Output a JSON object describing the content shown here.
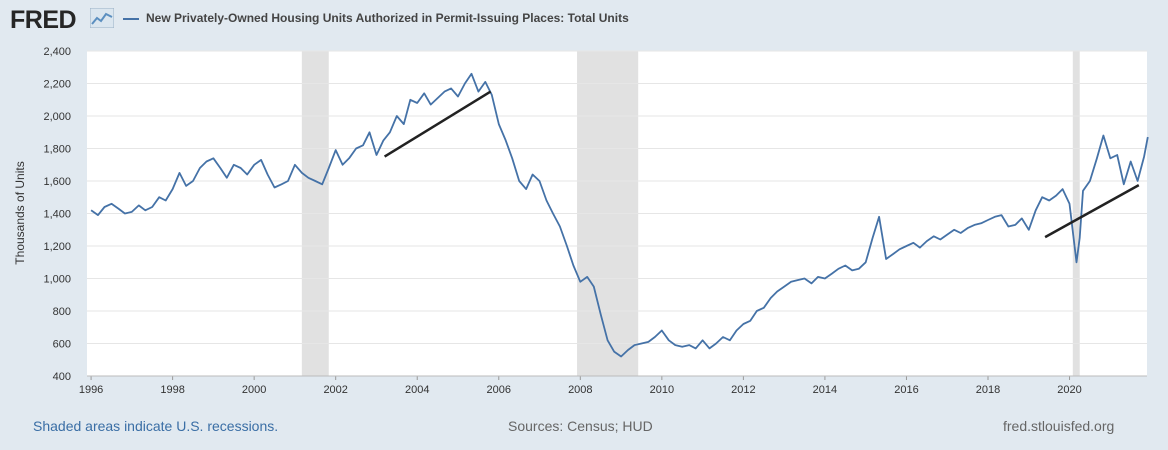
{
  "header": {
    "logo_text": "FRED",
    "logo_icon": "line-chart-icon",
    "series_title": "New Privately-Owned Housing Units Authorized in Permit-Issuing Places: Total Units"
  },
  "footer": {
    "recession_note": "Shaded areas indicate U.S. recessions.",
    "sources": "Sources: Census; HUD",
    "site": "fred.stlouisfed.org"
  },
  "colors": {
    "series": "#4572a7",
    "trend": "#222222",
    "recession": "#e1e1e1",
    "background": "#e1e9f0",
    "plot": "#ffffff"
  },
  "chart_data": {
    "type": "line",
    "title": "New Privately-Owned Housing Units Authorized in Permit-Issuing Places: Total Units",
    "ylabel": "Thousands of Units",
    "xlabel": "",
    "xlim": [
      1995.9,
      2021.9
    ],
    "ylim": [
      400,
      2400
    ],
    "yticks": [
      400,
      600,
      800,
      1000,
      1200,
      1400,
      1600,
      1800,
      2000,
      2200,
      2400
    ],
    "ytick_labels": [
      "400",
      "600",
      "800",
      "1,000",
      "1,200",
      "1,400",
      "1,600",
      "1,800",
      "2,000",
      "2,200",
      "2,400"
    ],
    "xticks": [
      1996,
      1998,
      2000,
      2002,
      2004,
      2006,
      2008,
      2010,
      2012,
      2014,
      2016,
      2018,
      2020
    ],
    "grid": true,
    "recessions": [
      [
        2001.17,
        2001.83
      ],
      [
        2007.92,
        2009.42
      ],
      [
        2020.08,
        2020.25
      ]
    ],
    "series": [
      {
        "name": "Total Units",
        "x": [
          1996.0,
          1996.17,
          1996.33,
          1996.5,
          1996.67,
          1996.83,
          1997.0,
          1997.17,
          1997.33,
          1997.5,
          1997.67,
          1997.83,
          1998.0,
          1998.17,
          1998.33,
          1998.5,
          1998.67,
          1998.83,
          1999.0,
          1999.17,
          1999.33,
          1999.5,
          1999.67,
          1999.83,
          2000.0,
          2000.17,
          2000.33,
          2000.5,
          2000.67,
          2000.83,
          2001.0,
          2001.17,
          2001.33,
          2001.5,
          2001.67,
          2001.83,
          2002.0,
          2002.17,
          2002.33,
          2002.5,
          2002.67,
          2002.83,
          2003.0,
          2003.17,
          2003.33,
          2003.5,
          2003.67,
          2003.83,
          2004.0,
          2004.17,
          2004.33,
          2004.5,
          2004.67,
          2004.83,
          2005.0,
          2005.17,
          2005.33,
          2005.5,
          2005.67,
          2005.83,
          2006.0,
          2006.17,
          2006.33,
          2006.5,
          2006.67,
          2006.83,
          2007.0,
          2007.17,
          2007.33,
          2007.5,
          2007.67,
          2007.83,
          2008.0,
          2008.17,
          2008.33,
          2008.5,
          2008.67,
          2008.83,
          2009.0,
          2009.17,
          2009.33,
          2009.5,
          2009.67,
          2009.83,
          2010.0,
          2010.17,
          2010.33,
          2010.5,
          2010.67,
          2010.83,
          2011.0,
          2011.17,
          2011.33,
          2011.5,
          2011.67,
          2011.83,
          2012.0,
          2012.17,
          2012.33,
          2012.5,
          2012.67,
          2012.83,
          2013.0,
          2013.17,
          2013.33,
          2013.5,
          2013.67,
          2013.83,
          2014.0,
          2014.17,
          2014.33,
          2014.5,
          2014.67,
          2014.83,
          2015.0,
          2015.17,
          2015.33,
          2015.5,
          2015.67,
          2015.83,
          2016.0,
          2016.17,
          2016.33,
          2016.5,
          2016.67,
          2016.83,
          2017.0,
          2017.17,
          2017.33,
          2017.5,
          2017.67,
          2017.83,
          2018.0,
          2018.17,
          2018.33,
          2018.5,
          2018.67,
          2018.83,
          2019.0,
          2019.17,
          2019.33,
          2019.5,
          2019.67,
          2019.83,
          2020.0,
          2020.17,
          2020.25,
          2020.33,
          2020.5,
          2020.67,
          2020.83,
          2021.0,
          2021.17,
          2021.33,
          2021.5,
          2021.67,
          2021.83,
          2021.92
        ],
        "values": [
          1420,
          1390,
          1440,
          1460,
          1430,
          1400,
          1410,
          1450,
          1420,
          1440,
          1500,
          1480,
          1550,
          1650,
          1570,
          1600,
          1680,
          1720,
          1740,
          1680,
          1620,
          1700,
          1680,
          1640,
          1700,
          1730,
          1640,
          1560,
          1580,
          1600,
          1700,
          1650,
          1620,
          1600,
          1580,
          1680,
          1790,
          1700,
          1740,
          1800,
          1820,
          1900,
          1760,
          1850,
          1900,
          2000,
          1950,
          2100,
          2080,
          2140,
          2070,
          2110,
          2150,
          2170,
          2120,
          2200,
          2260,
          2150,
          2210,
          2130,
          1950,
          1850,
          1740,
          1600,
          1550,
          1640,
          1600,
          1480,
          1400,
          1320,
          1200,
          1080,
          980,
          1010,
          950,
          780,
          620,
          550,
          520,
          560,
          590,
          600,
          610,
          640,
          680,
          620,
          590,
          580,
          590,
          570,
          620,
          570,
          600,
          640,
          620,
          680,
          720,
          740,
          800,
          820,
          880,
          920,
          950,
          980,
          990,
          1000,
          970,
          1010,
          1000,
          1030,
          1060,
          1080,
          1050,
          1060,
          1100,
          1250,
          1380,
          1120,
          1150,
          1180,
          1200,
          1220,
          1190,
          1230,
          1260,
          1240,
          1270,
          1300,
          1280,
          1310,
          1330,
          1340,
          1360,
          1380,
          1390,
          1320,
          1330,
          1370,
          1300,
          1420,
          1500,
          1480,
          1510,
          1550,
          1460,
          1100,
          1250,
          1540,
          1600,
          1740,
          1880,
          1740,
          1760,
          1580,
          1720,
          1600,
          1750,
          1870
        ]
      },
      {
        "name": "",
        "role": "trend",
        "x": [
          2003.2,
          2005.8
        ],
        "values": [
          1750,
          2150
        ]
      },
      {
        "name": "",
        "role": "trend",
        "x": [
          2019.4,
          2021.7
        ],
        "values": [
          1255,
          1575
        ]
      }
    ]
  }
}
